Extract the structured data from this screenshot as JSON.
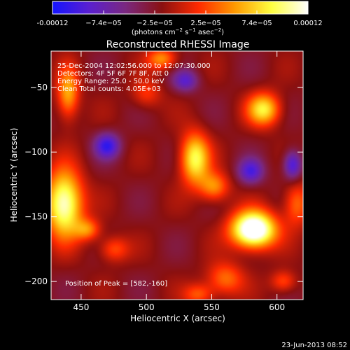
{
  "colorbar": {
    "tick_labels": [
      "-0.00012",
      "−7.4e−05",
      "−2.5e−05",
      "2.5e−05",
      "7.4e−05",
      "0.00012"
    ],
    "range": [
      -0.00012,
      0.00012
    ],
    "colors": [
      "#1414ff",
      "#5a1fd0",
      "#7a2880",
      "#8a1010",
      "#ff2a00",
      "#ff9a00",
      "#ffff40",
      "#ffffff"
    ],
    "unit_label": "(photons cm",
    "unit_sup1": "−2",
    "unit_mid": " s",
    "unit_sup2": "−1",
    "unit_mid2": " asec",
    "unit_sup3": "−2",
    "unit_end": ")"
  },
  "annotations": {
    "time_range": "25-Dec-2004 12:02:56.000 to 12:07:30.000",
    "detectors": "Detectors: 4F 5F 6F 7F 8F, Att 0",
    "energy": "Energy Range: 25.0 - 50.0 keV",
    "clean": "Clean     Total counts: 4.05E+03",
    "peak": "Position of Peak = [582,-160]"
  },
  "footer": {
    "timestamp": "23-Jun-2013 08:52"
  },
  "chart_data": {
    "type": "heatmap",
    "title": "Reconstructed RHESSI Image",
    "xlabel": "Heliocentric X (arcsec)",
    "ylabel": "Heliocentric Y (arcsec)",
    "xlim": [
      427,
      620
    ],
    "ylim": [
      -214,
      -22
    ],
    "xticks": [
      450,
      500,
      550,
      600
    ],
    "yticks": [
      -50,
      -100,
      -150,
      -200
    ],
    "xtick_labels": [
      "450",
      "500",
      "550",
      "600"
    ],
    "ytick_labels": [
      "−50",
      "−100",
      "−150",
      "−200"
    ],
    "peak": [
      582,
      -160
    ],
    "background_level": -2e-05,
    "sources": [
      {
        "x": 582,
        "y": -160,
        "a": 0.00018,
        "sx": 12,
        "sy": 10
      },
      {
        "x": 437,
        "y": -140,
        "a": 0.00014,
        "sx": 10,
        "sy": 18
      },
      {
        "x": 440,
        "y": -55,
        "a": 8e-05,
        "sx": 6,
        "sy": 14
      },
      {
        "x": 537,
        "y": -105,
        "a": 0.00011,
        "sx": 8,
        "sy": 14
      },
      {
        "x": 590,
        "y": -67,
        "a": 0.0001,
        "sx": 9,
        "sy": 9
      },
      {
        "x": 552,
        "y": -127,
        "a": 7e-05,
        "sx": 8,
        "sy": 8
      },
      {
        "x": 560,
        "y": -198,
        "a": 6e-05,
        "sx": 10,
        "sy": 9
      },
      {
        "x": 540,
        "y": -210,
        "a": 5e-05,
        "sx": 8,
        "sy": 6
      },
      {
        "x": 615,
        "y": -140,
        "a": 6e-05,
        "sx": 7,
        "sy": 12
      },
      {
        "x": 475,
        "y": -175,
        "a": 5e-05,
        "sx": 8,
        "sy": 7
      },
      {
        "x": 512,
        "y": -28,
        "a": 7e-05,
        "sx": 8,
        "sy": 6
      },
      {
        "x": 605,
        "y": -200,
        "a": 5e-05,
        "sx": 7,
        "sy": 6
      },
      {
        "x": 500,
        "y": -55,
        "a": 4e-05,
        "sx": 8,
        "sy": 8
      },
      {
        "x": 455,
        "y": -160,
        "a": 6e-05,
        "sx": 7,
        "sy": 6
      },
      {
        "x": 470,
        "y": -95,
        "a": -8e-05,
        "sx": 7,
        "sy": 7
      },
      {
        "x": 580,
        "y": -115,
        "a": -7e-05,
        "sx": 7,
        "sy": 7
      },
      {
        "x": 612,
        "y": -110,
        "a": -8e-05,
        "sx": 5,
        "sy": 8
      },
      {
        "x": 530,
        "y": -45,
        "a": -6e-05,
        "sx": 7,
        "sy": 6
      }
    ]
  }
}
